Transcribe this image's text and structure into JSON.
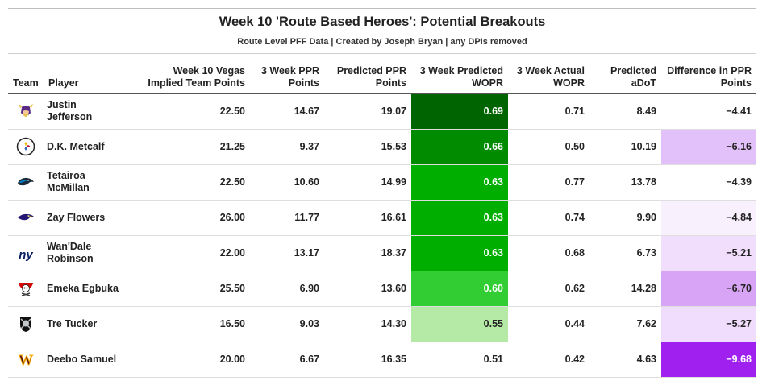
{
  "chart_data": {
    "type": "table",
    "title": "Week 10 'Route Based Heroes': Potential Breakouts",
    "subtitle": "Route Level PFF Data | Created by Joseph Bryan | any DPIs removed",
    "columns": [
      {
        "key": "team",
        "label": "Team"
      },
      {
        "key": "player",
        "label": "Player"
      },
      {
        "key": "implied",
        "label": "Week 10 Vegas Implied Team Points"
      },
      {
        "key": "ppr3",
        "label": "3 Week PPR Points"
      },
      {
        "key": "pred_ppr",
        "label": "Predicted PPR Points"
      },
      {
        "key": "pred_wopr",
        "label": "3 Week Predicted WOPR"
      },
      {
        "key": "act_wopr",
        "label": "3 Week Actual WOPR"
      },
      {
        "key": "adot",
        "label": "Predicted aDoT"
      },
      {
        "key": "diff",
        "label": "Difference in PPR Points"
      }
    ],
    "rows": [
      {
        "team": "vikings-logo",
        "player": "Justin Jefferson",
        "implied": "22.50",
        "ppr3": "14.67",
        "pred_ppr": "19.07",
        "pred_wopr": "0.69",
        "act_wopr": "0.71",
        "adot": "8.49",
        "diff": "−4.41"
      },
      {
        "team": "steelers-logo",
        "player": "D.K. Metcalf",
        "implied": "21.25",
        "ppr3": "9.37",
        "pred_ppr": "15.53",
        "pred_wopr": "0.66",
        "act_wopr": "0.50",
        "adot": "10.19",
        "diff": "−6.16"
      },
      {
        "team": "panthers-logo",
        "player": "Tetairoa McMillan",
        "implied": "22.50",
        "ppr3": "10.60",
        "pred_ppr": "14.99",
        "pred_wopr": "0.63",
        "act_wopr": "0.77",
        "adot": "13.78",
        "diff": "−4.39"
      },
      {
        "team": "ravens-logo",
        "player": "Zay Flowers",
        "implied": "26.00",
        "ppr3": "11.77",
        "pred_ppr": "16.61",
        "pred_wopr": "0.63",
        "act_wopr": "0.74",
        "adot": "9.90",
        "diff": "−4.84"
      },
      {
        "team": "giants-logo",
        "player": "Wan'Dale Robinson",
        "implied": "22.00",
        "ppr3": "13.17",
        "pred_ppr": "18.37",
        "pred_wopr": "0.63",
        "act_wopr": "0.68",
        "adot": "6.73",
        "diff": "−5.21"
      },
      {
        "team": "buccaneers-logo",
        "player": "Emeka Egbuka",
        "implied": "25.50",
        "ppr3": "6.90",
        "pred_ppr": "13.60",
        "pred_wopr": "0.60",
        "act_wopr": "0.62",
        "adot": "14.28",
        "diff": "−6.70"
      },
      {
        "team": "raiders-logo",
        "player": "Tre Tucker",
        "implied": "16.50",
        "ppr3": "9.03",
        "pred_ppr": "14.30",
        "pred_wopr": "0.55",
        "act_wopr": "0.44",
        "adot": "7.62",
        "diff": "−5.27"
      },
      {
        "team": "commanders-logo",
        "player": "Deebo Samuel",
        "implied": "20.00",
        "ppr3": "6.67",
        "pred_ppr": "16.35",
        "pred_wopr": "0.51",
        "act_wopr": "0.42",
        "adot": "4.63",
        "diff": "−9.68"
      }
    ],
    "wopr_fill": [
      "#006400",
      "#008b00",
      "#00ae00",
      "#00ae00",
      "#00ae00",
      "#32cd32",
      "#b5eaa6",
      "#ffffff"
    ],
    "wopr_text": [
      "#ffffff",
      "#ffffff",
      "#ffffff",
      "#ffffff",
      "#ffffff",
      "#ffffff",
      "#222222",
      "#222222"
    ],
    "diff_fill": [
      "#ffffff",
      "#e2c0f9",
      "#ffffff",
      "#f9f0fe",
      "#f1defc",
      "#d8a4f5",
      "#f0dcfc",
      "#a020f0"
    ],
    "diff_text": [
      "#222222",
      "#222222",
      "#222222",
      "#222222",
      "#222222",
      "#222222",
      "#222222",
      "#ffffff"
    ]
  }
}
